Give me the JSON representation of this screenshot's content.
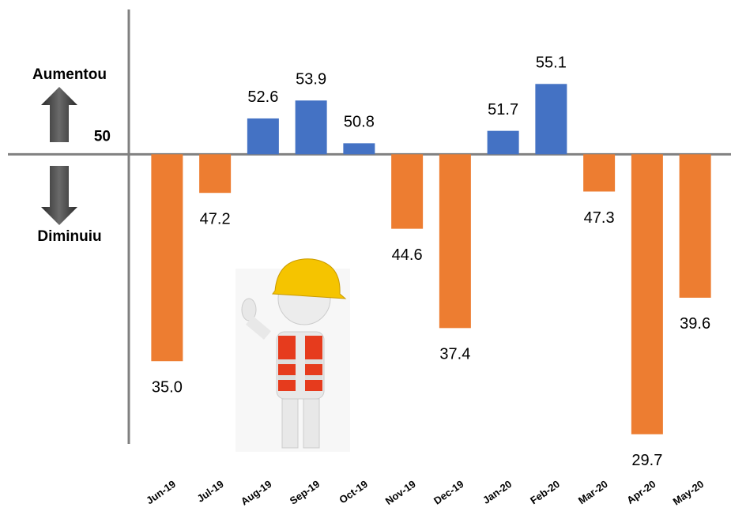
{
  "chart_data": {
    "type": "bar",
    "categories": [
      "Jun-19",
      "Jul-19",
      "Aug-19",
      "Sep-19",
      "Oct-19",
      "Nov-19",
      "Dec-19",
      "Jan-20",
      "Feb-20",
      "Mar-20",
      "Apr-20",
      "May-20"
    ],
    "values": [
      35.0,
      47.2,
      52.6,
      53.9,
      50.8,
      44.6,
      37.4,
      51.7,
      55.1,
      47.3,
      29.7,
      39.6
    ],
    "value_labels": [
      "35.0",
      "47.2",
      "52.6",
      "53.9",
      "50.8",
      "44.6",
      "37.4",
      "51.7",
      "55.1",
      "47.3",
      "29.7",
      "39.6"
    ],
    "colors": [
      "#ed7d31",
      "#ed7d31",
      "#4472c4",
      "#4472c4",
      "#4472c4",
      "#ed7d31",
      "#ed7d31",
      "#4472c4",
      "#4472c4",
      "#ed7d31",
      "#ed7d31",
      "#ed7d31"
    ],
    "ylim": [
      29,
      60.5
    ],
    "yticks": [
      50
    ],
    "annotations": [
      "Aumentou",
      "Diminuiu"
    ]
  }
}
